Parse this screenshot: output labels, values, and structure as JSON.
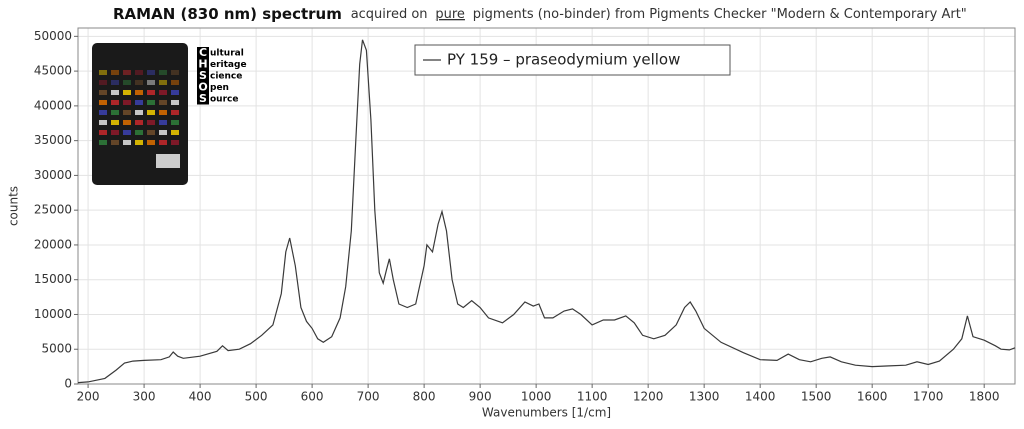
{
  "chart_data": {
    "type": "line",
    "title": [
      "RAMAN (830 nm) spectrum",
      "acquired on",
      "pure",
      "pigments (no-binder) from Pigments Checker \"Modern & Contemporary Art\""
    ],
    "x_label": "Wavenumbers [1/cm]",
    "y_label": "counts",
    "logo": {
      "letters": [
        "C",
        "H",
        "S",
        "O",
        "S"
      ],
      "words": [
        "ultural",
        "eritage",
        "cience",
        "pen",
        "ource"
      ]
    },
    "xlim": [
      182,
      1855
    ],
    "ylim": [
      0,
      51200
    ],
    "xticks": [
      200,
      300,
      400,
      500,
      600,
      700,
      800,
      900,
      1000,
      1100,
      1200,
      1300,
      1400,
      1500,
      1600,
      1700,
      1800
    ],
    "yticks": [
      0,
      5000,
      10000,
      15000,
      20000,
      25000,
      30000,
      35000,
      40000,
      45000,
      50000
    ],
    "grid": true,
    "legend": "upper center",
    "series": [
      {
        "name": "PY 159 – praseodymium yellow",
        "color": "#3a3a3a",
        "x": [
          182,
          200,
          230,
          250,
          265,
          280,
          300,
          330,
          345,
          352,
          360,
          370,
          400,
          430,
          440,
          450,
          470,
          490,
          510,
          530,
          545,
          553,
          560,
          570,
          580,
          590,
          600,
          610,
          620,
          635,
          650,
          660,
          670,
          678,
          685,
          690,
          697,
          705,
          712,
          720,
          727,
          733,
          738,
          745,
          755,
          770,
          785,
          800,
          805,
          815,
          825,
          832,
          840,
          850,
          860,
          870,
          885,
          900,
          915,
          940,
          960,
          980,
          995,
          1005,
          1015,
          1030,
          1050,
          1065,
          1080,
          1100,
          1120,
          1140,
          1160,
          1175,
          1190,
          1210,
          1230,
          1250,
          1265,
          1275,
          1285,
          1300,
          1330,
          1370,
          1400,
          1430,
          1450,
          1470,
          1490,
          1510,
          1525,
          1545,
          1570,
          1600,
          1630,
          1660,
          1680,
          1700,
          1720,
          1745,
          1760,
          1770,
          1780,
          1800,
          1820,
          1830,
          1845,
          1855
        ],
        "values": [
          200,
          300,
          800,
          2000,
          3000,
          3300,
          3400,
          3500,
          3900,
          4600,
          4000,
          3700,
          4000,
          4700,
          5500,
          4800,
          5000,
          5800,
          7000,
          8500,
          13000,
          19000,
          21000,
          17000,
          11000,
          9000,
          8000,
          6500,
          6000,
          6800,
          9500,
          14000,
          22000,
          35000,
          46000,
          49500,
          48000,
          38000,
          25000,
          16000,
          14500,
          16500,
          18000,
          15000,
          11500,
          11000,
          11500,
          17000,
          20000,
          19000,
          23000,
          24800,
          22000,
          15000,
          11500,
          11000,
          12000,
          11000,
          9500,
          8800,
          10000,
          11800,
          11200,
          11500,
          9500,
          9500,
          10500,
          10800,
          10000,
          8500,
          9200,
          9200,
          9800,
          8800,
          7000,
          6500,
          7000,
          8500,
          11000,
          11800,
          10500,
          8000,
          6000,
          4500,
          3500,
          3400,
          4300,
          3500,
          3200,
          3700,
          3900,
          3200,
          2700,
          2500,
          2600,
          2700,
          3200,
          2800,
          3300,
          5000,
          6500,
          9800,
          6800,
          6300,
          5500,
          5000,
          4900,
          5200
        ]
      }
    ]
  }
}
